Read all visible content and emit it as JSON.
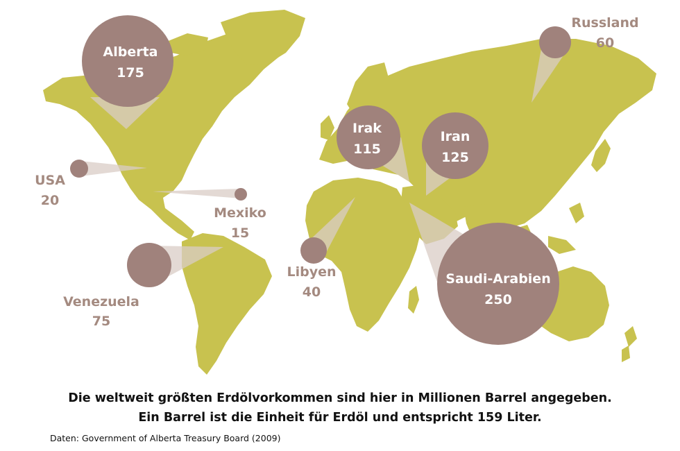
{
  "caption": {
    "line1": "Die weltweit größten Erdölvorkommen sind hier in Millionen Barrel angegeben.",
    "line2": "Ein Barrel ist die Einheit für Erdöl und entspricht 159 Liter."
  },
  "source": "Daten: Government of Alberta Treasury Board (2009)",
  "colors": {
    "land": "#c8c24f",
    "bubble": "#a0827c",
    "label": "#a48a80",
    "cone": "#d9ccc6"
  },
  "reserves": [
    {
      "name": "Alberta",
      "value": "175"
    },
    {
      "name": "Russland",
      "value": "60"
    },
    {
      "name": "USA",
      "value": "20"
    },
    {
      "name": "Mexiko",
      "value": "15"
    },
    {
      "name": "Venezuela",
      "value": "75"
    },
    {
      "name": "Irak",
      "value": "115"
    },
    {
      "name": "Iran",
      "value": "125"
    },
    {
      "name": "Libyen",
      "value": "40"
    },
    {
      "name": "Saudi-Arabien",
      "value": "250"
    }
  ]
}
